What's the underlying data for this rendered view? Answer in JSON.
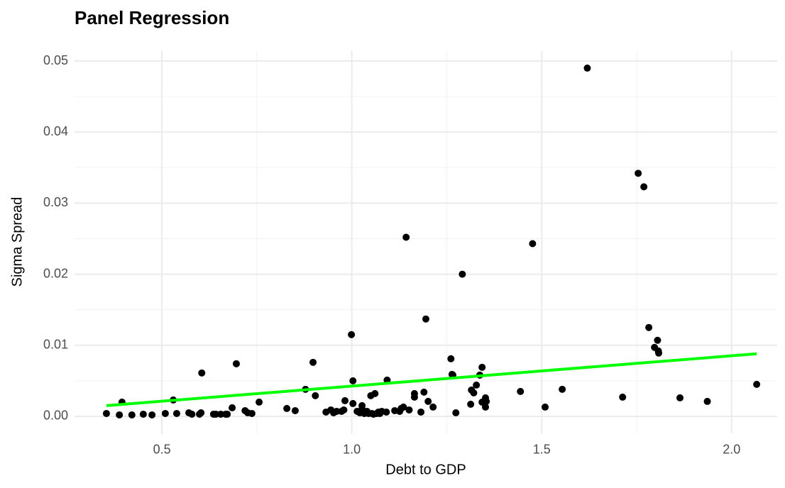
{
  "chart_data": {
    "type": "scatter",
    "title": "Panel Regression",
    "x_label": "Debt to GDP",
    "y_label": "Sigma Spread",
    "xlim": [
      0.27,
      2.12
    ],
    "ylim": [
      -0.00245,
      0.05145
    ],
    "xticks": [
      {
        "value": 0.5,
        "label": "0.5"
      },
      {
        "value": 1.0,
        "label": "1.0"
      },
      {
        "value": 1.5,
        "label": "1.5"
      },
      {
        "value": 2.0,
        "label": "2.0"
      }
    ],
    "yticks": [
      {
        "value": 0,
        "label": "0.00"
      },
      {
        "value": 0.01,
        "label": "0.01"
      },
      {
        "value": 0.02,
        "label": "0.02"
      },
      {
        "value": 0.03,
        "label": "0.03"
      },
      {
        "value": 0.04,
        "label": "0.04"
      },
      {
        "value": 0.05,
        "label": "0.05"
      }
    ],
    "x_minor_grid": [
      0.75,
      1.25,
      1.75
    ],
    "y_minor_grid": [
      0.005,
      0.015,
      0.025,
      0.035,
      0.045
    ],
    "grid": true,
    "series": [
      {
        "color": "#000000",
        "x": [
          0.354,
          0.388,
          0.395,
          0.421,
          0.451,
          0.474,
          0.509,
          0.53,
          0.539,
          0.571,
          0.579,
          0.599,
          0.603,
          0.605,
          0.636,
          0.642,
          0.655,
          0.668,
          0.672,
          0.685,
          0.696,
          0.719,
          0.726,
          0.737,
          0.756,
          0.829,
          0.851,
          0.878,
          0.898,
          0.904,
          0.932,
          0.945,
          0.952,
          0.96,
          0.973,
          0.979,
          0.982,
          0.999,
          1.003,
          1.003,
          1.014,
          1.021,
          1.027,
          1.027,
          1.031,
          1.033,
          1.04,
          1.044,
          1.05,
          1.053,
          1.057,
          1.061,
          1.066,
          1.07,
          1.074,
          1.079,
          1.091,
          1.093,
          1.113,
          1.126,
          1.13,
          1.136,
          1.143,
          1.151,
          1.165,
          1.165,
          1.182,
          1.19,
          1.195,
          1.201,
          1.214,
          1.261,
          1.264,
          1.266,
          1.274,
          1.291,
          1.313,
          1.315,
          1.321,
          1.328,
          1.337,
          1.343,
          1.343,
          1.352,
          1.352,
          1.354,
          1.444,
          1.476,
          1.509,
          1.554,
          1.62,
          1.713,
          1.754,
          1.769,
          1.782,
          1.797,
          1.805,
          1.807,
          1.808,
          1.864,
          1.936,
          2.066
        ],
        "values": [
          0.0004,
          0.0002,
          0.002,
          0.0002,
          0.0003,
          0.0002,
          0.0004,
          0.0023,
          0.0004,
          0.0005,
          0.0003,
          0.0003,
          0.0005,
          0.0061,
          0.0003,
          0.0003,
          0.0003,
          0.0003,
          0.0003,
          0.0012,
          0.0074,
          0.0008,
          0.0005,
          0.0004,
          0.002,
          0.0011,
          0.0008,
          0.0038,
          0.0076,
          0.0029,
          0.0006,
          0.0009,
          0.0005,
          0.0007,
          0.0007,
          0.0009,
          0.0022,
          0.0115,
          0.005,
          0.0018,
          0.0007,
          0.0005,
          0.0015,
          0.001,
          0.0007,
          0.0004,
          0.0007,
          0.0004,
          0.0029,
          0.0004,
          0.0003,
          0.0032,
          0.0004,
          0.0006,
          0.0004,
          0.0007,
          0.0006,
          0.0051,
          0.0008,
          0.0007,
          0.0011,
          0.0013,
          0.0252,
          0.0009,
          0.0032,
          0.0027,
          0.0006,
          0.0034,
          0.0137,
          0.0021,
          0.0013,
          0.0081,
          0.0059,
          0.0058,
          0.0005,
          0.02,
          0.0017,
          0.0037,
          0.0033,
          0.0044,
          0.0058,
          0.0069,
          0.002,
          0.0026,
          0.0013,
          0.0021,
          0.0035,
          0.0243,
          0.0013,
          0.0038,
          0.049,
          0.0027,
          0.0342,
          0.0323,
          0.0125,
          0.0097,
          0.0107,
          0.0092,
          0.0089,
          0.0026,
          0.0021,
          0.0045
        ]
      }
    ],
    "fit_line": {
      "color": "#00ff00",
      "x": [
        0.354,
        2.066
      ],
      "values": [
        0.0015,
        0.0088
      ]
    }
  }
}
